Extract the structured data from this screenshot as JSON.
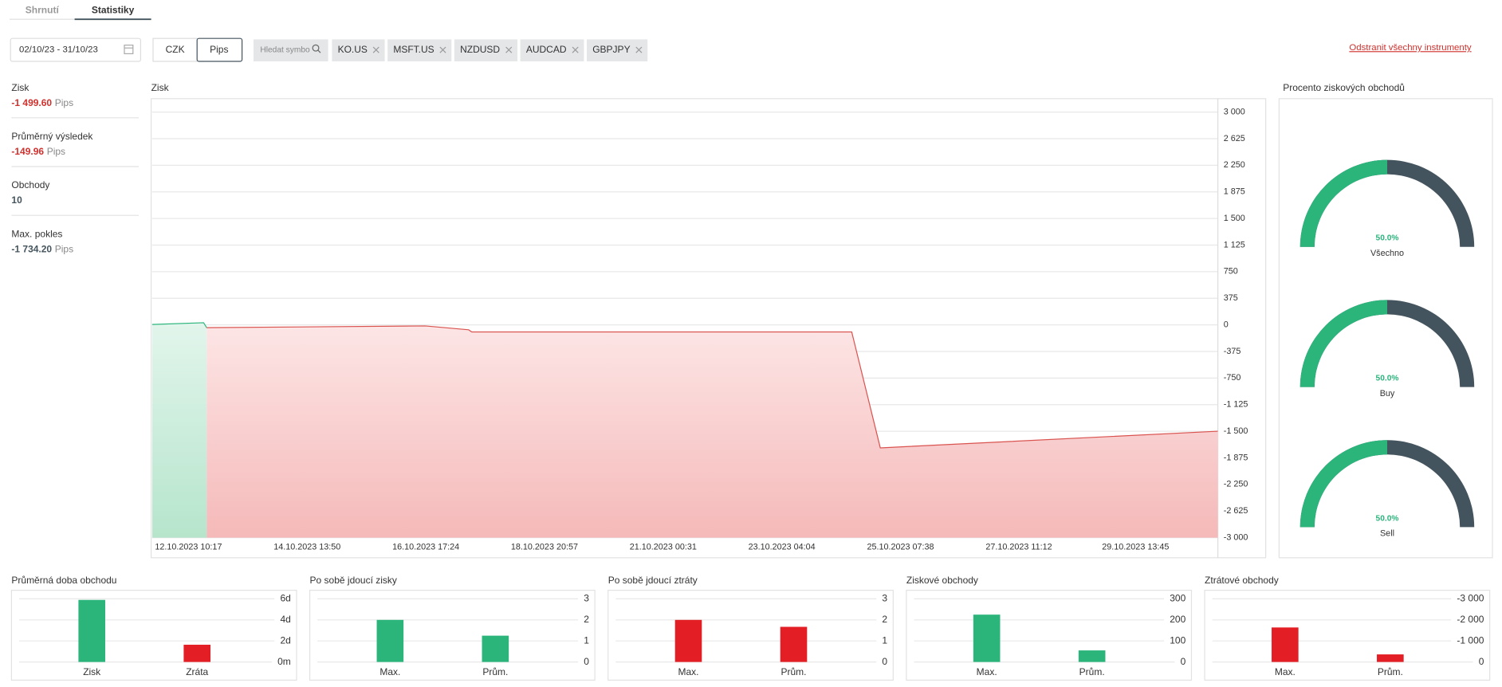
{
  "tabs": [
    "Shrnutí",
    "Statistiky"
  ],
  "date_range": "02/10/23 - 31/10/23",
  "units": [
    "CZK",
    "Pips"
  ],
  "search_placeholder": "Hledat symbol",
  "instruments": [
    "KO.US",
    "MSFT.US",
    "NZDUSD",
    "AUDCAD",
    "GBPJPY"
  ],
  "remove_all": "Odstranit všechny instrumenty",
  "stats": [
    {
      "label": "Zisk",
      "value": "-1 499.60",
      "unit": "Pips",
      "color": "#d0312d"
    },
    {
      "label": "Průměrný výsledek",
      "value": "-149.96",
      "unit": "Pips",
      "color": "#d0312d"
    },
    {
      "label": "Obchody",
      "value": "10",
      "color": "#44545e"
    },
    {
      "label": "Max. pokles",
      "value": "-1 734.20",
      "unit": "Pips",
      "color": "#44545e"
    }
  ],
  "chart_data": [
    {
      "type": "line",
      "title": "Zisk",
      "color": "#d9534f",
      "x": [
        "12.10.2023 10:17",
        "13.10.2023 08:40",
        "13.10.2023 10:00",
        "17.10.2023 09:00",
        "18.10.2023 03:50",
        "18.10.2023 05:10",
        "25.10.2023 02:15",
        "25.10.2023 14:40",
        "31.10.2023 17:20"
      ],
      "values": [
        5,
        30,
        -40,
        -15,
        -70,
        -100,
        -100,
        -1734.2,
        -1499.6
      ],
      "xlim": [
        "12.10.2023 10:17",
        "31.10.2023 17:20"
      ],
      "xticks": [
        "12.10.2023 10:17",
        "14.10.2023 13:50",
        "16.10.2023 17:24",
        "18.10.2023 20:57",
        "21.10.2023 00:31",
        "23.10.2023 04:04",
        "25.10.2023 07:38",
        "27.10.2023 11:12",
        "29.10.2023 13:45"
      ],
      "ylim": [
        -3000,
        3000
      ],
      "yticks": [
        {
          "value": 3000,
          "label": "3 000"
        },
        {
          "value": 2625,
          "label": "2 625"
        },
        {
          "value": 2250,
          "label": "2 250"
        },
        {
          "value": 1875,
          "label": "1 875"
        },
        {
          "value": 1500,
          "label": "1 500"
        },
        {
          "value": 1125,
          "label": "1 125"
        },
        750,
        375,
        0,
        -375,
        -750,
        {
          "value": -1125,
          "label": "-1 125"
        },
        {
          "value": -1500,
          "label": "-1 500"
        },
        {
          "value": -1875,
          "label": "-1 875"
        },
        {
          "value": -2250,
          "label": "-2 250"
        },
        {
          "value": -2625,
          "label": "-2 625"
        },
        {
          "value": -3000,
          "label": "-3 000"
        }
      ],
      "grid": true
    },
    {
      "type": "gauge",
      "title": "Procento ziskových obchodů",
      "categories": [
        "Všechno",
        "Buy",
        "Sell"
      ],
      "values": [
        50,
        50,
        50
      ],
      "value_labels": [
        "50.0%",
        "50.0%",
        "50.0%"
      ],
      "colors": [
        "#2bb57b",
        "#44545e"
      ]
    },
    {
      "type": "bar",
      "title": "Průměrná doba obchodu",
      "categories": [
        "Zisk",
        "Zráta"
      ],
      "values": [
        5.9,
        1.64
      ],
      "colors": [
        "#2bb57b",
        "#e31e24"
      ],
      "ylim": [
        0,
        6
      ],
      "yticks": [
        {
          "value": 6,
          "label": "6d"
        },
        {
          "value": 4,
          "label": "4d"
        },
        {
          "value": 2,
          "label": "2d"
        },
        {
          "value": 0,
          "label": "0m"
        }
      ],
      "grid": true
    },
    {
      "type": "bar",
      "title": "Po sobě jdoucí zisky",
      "categories": [
        "Max.",
        "Prům."
      ],
      "values": [
        2,
        1.25
      ],
      "colors": [
        "#2bb57b",
        "#2bb57b"
      ],
      "ylim": [
        0,
        3
      ],
      "yticks": [
        3,
        2,
        1,
        0
      ],
      "grid": true
    },
    {
      "type": "bar",
      "title": "Po sobě jdoucí ztráty",
      "categories": [
        "Max.",
        "Prům."
      ],
      "values": [
        2,
        1.67
      ],
      "colors": [
        "#e31e24",
        "#e31e24"
      ],
      "ylim": [
        0,
        3
      ],
      "yticks": [
        3,
        2,
        1,
        0
      ],
      "grid": true
    },
    {
      "type": "bar",
      "title": "Ziskové obchody",
      "categories": [
        "Max.",
        "Prům."
      ],
      "values": [
        225,
        55
      ],
      "colors": [
        "#2bb57b",
        "#2bb57b"
      ],
      "ylim": [
        0,
        300
      ],
      "yticks": [
        300,
        200,
        100,
        0
      ],
      "grid": true
    },
    {
      "type": "bar",
      "title": "Ztrátové obchody",
      "categories": [
        "Max.",
        "Prům."
      ],
      "values": [
        -1640,
        -360
      ],
      "colors": [
        "#e31e24",
        "#e31e24"
      ],
      "ylim": [
        0,
        -3000
      ],
      "yticks": [
        {
          "value": -3000,
          "label": "-3 000"
        },
        {
          "value": -2000,
          "label": "-2 000"
        },
        {
          "value": -1000,
          "label": "-1 000"
        },
        0
      ],
      "grid": true
    }
  ]
}
